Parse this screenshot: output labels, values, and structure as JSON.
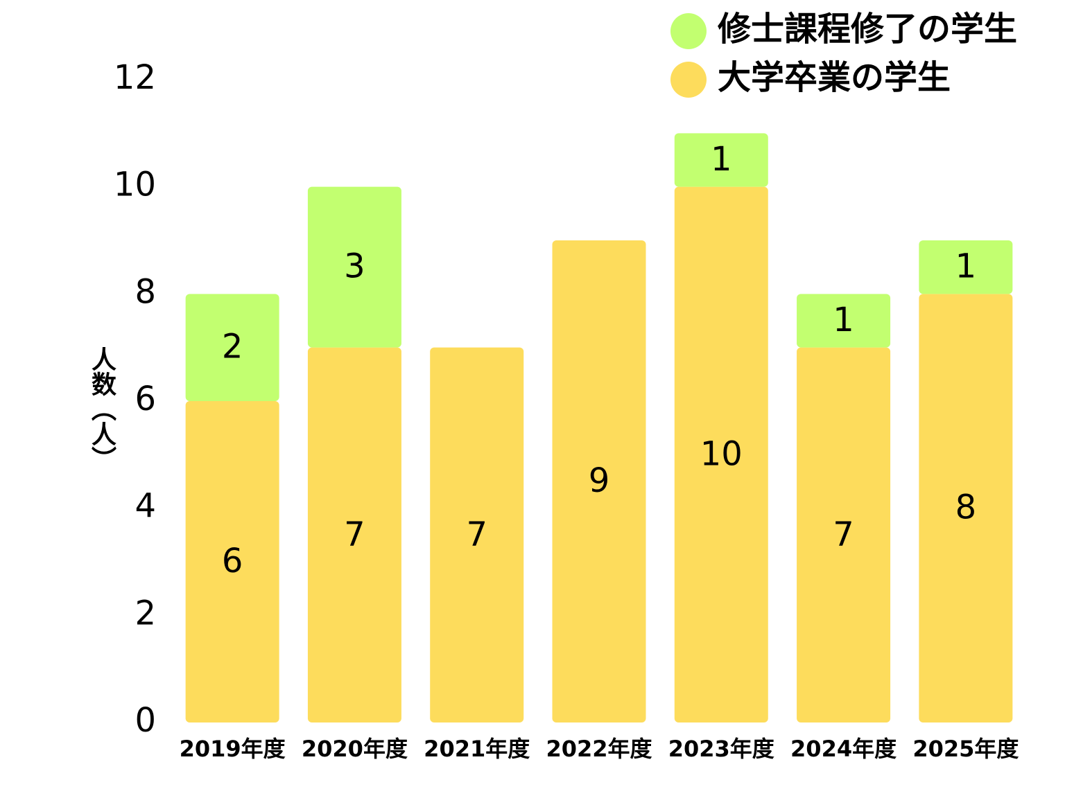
{
  "chart_data": {
    "type": "stacked_bar",
    "y_label": "人数（人）",
    "categories": [
      "2019年度",
      "2020年度",
      "2021年度",
      "2022年度",
      "2023年度",
      "2024年度",
      "2025年度"
    ],
    "series": [
      {
        "name": "大学卒業の学生",
        "color": "#fddc5c",
        "values": [
          6,
          7,
          7,
          9,
          10,
          7,
          8
        ]
      },
      {
        "name": "修士課程修了の学生",
        "color": "#c2ff70",
        "values": [
          2,
          3,
          null,
          null,
          1,
          1,
          1
        ]
      }
    ],
    "ylim": [
      0,
      12
    ],
    "yticks": [
      0,
      2,
      4,
      6,
      8,
      10,
      12
    ],
    "grid": false,
    "legend": "top-right"
  }
}
